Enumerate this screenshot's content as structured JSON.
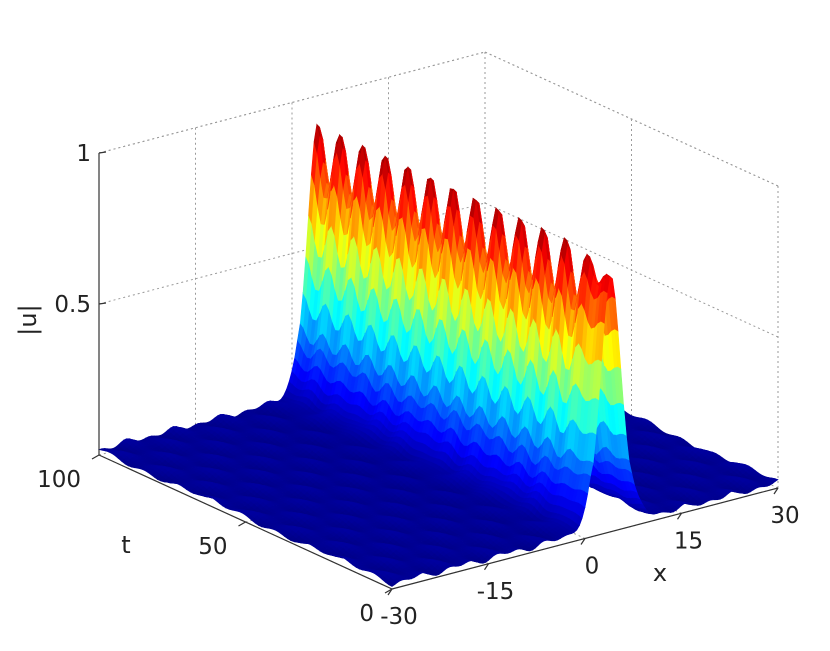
{
  "chart_data": {
    "type": "surface",
    "title": "",
    "xlabel": "x",
    "ylabel": "t",
    "zlabel": "|u|",
    "xlim": [
      -30,
      30
    ],
    "ylim": [
      0,
      100
    ],
    "zlim": [
      0,
      1
    ],
    "xticks": [
      -30,
      -15,
      0,
      15,
      30
    ],
    "yticks": [
      0,
      50,
      100
    ],
    "zticks": [
      0.5,
      1
    ],
    "x_tick_labels": [
      "-30",
      "-15",
      "0",
      "15",
      "30"
    ],
    "y_tick_labels": [
      "0",
      "50",
      "100"
    ],
    "z_tick_labels": [
      "0.5",
      "1"
    ],
    "colormap": "jet",
    "grid": true,
    "box": true,
    "view": "3d",
    "surface": {
      "description": "Single localized pulse of |u| propagating in t, centered near x = 4 with width about 4",
      "peak_x": 4,
      "pulse_width": 4,
      "peak_amplitude_t0": 0.85,
      "peak_amplitude_t100": 0.88,
      "oscillation_periods_in_t": 13,
      "peak_min_amplitude": 0.72,
      "peak_max_amplitude": 0.91,
      "background_level": 0.03
    }
  }
}
